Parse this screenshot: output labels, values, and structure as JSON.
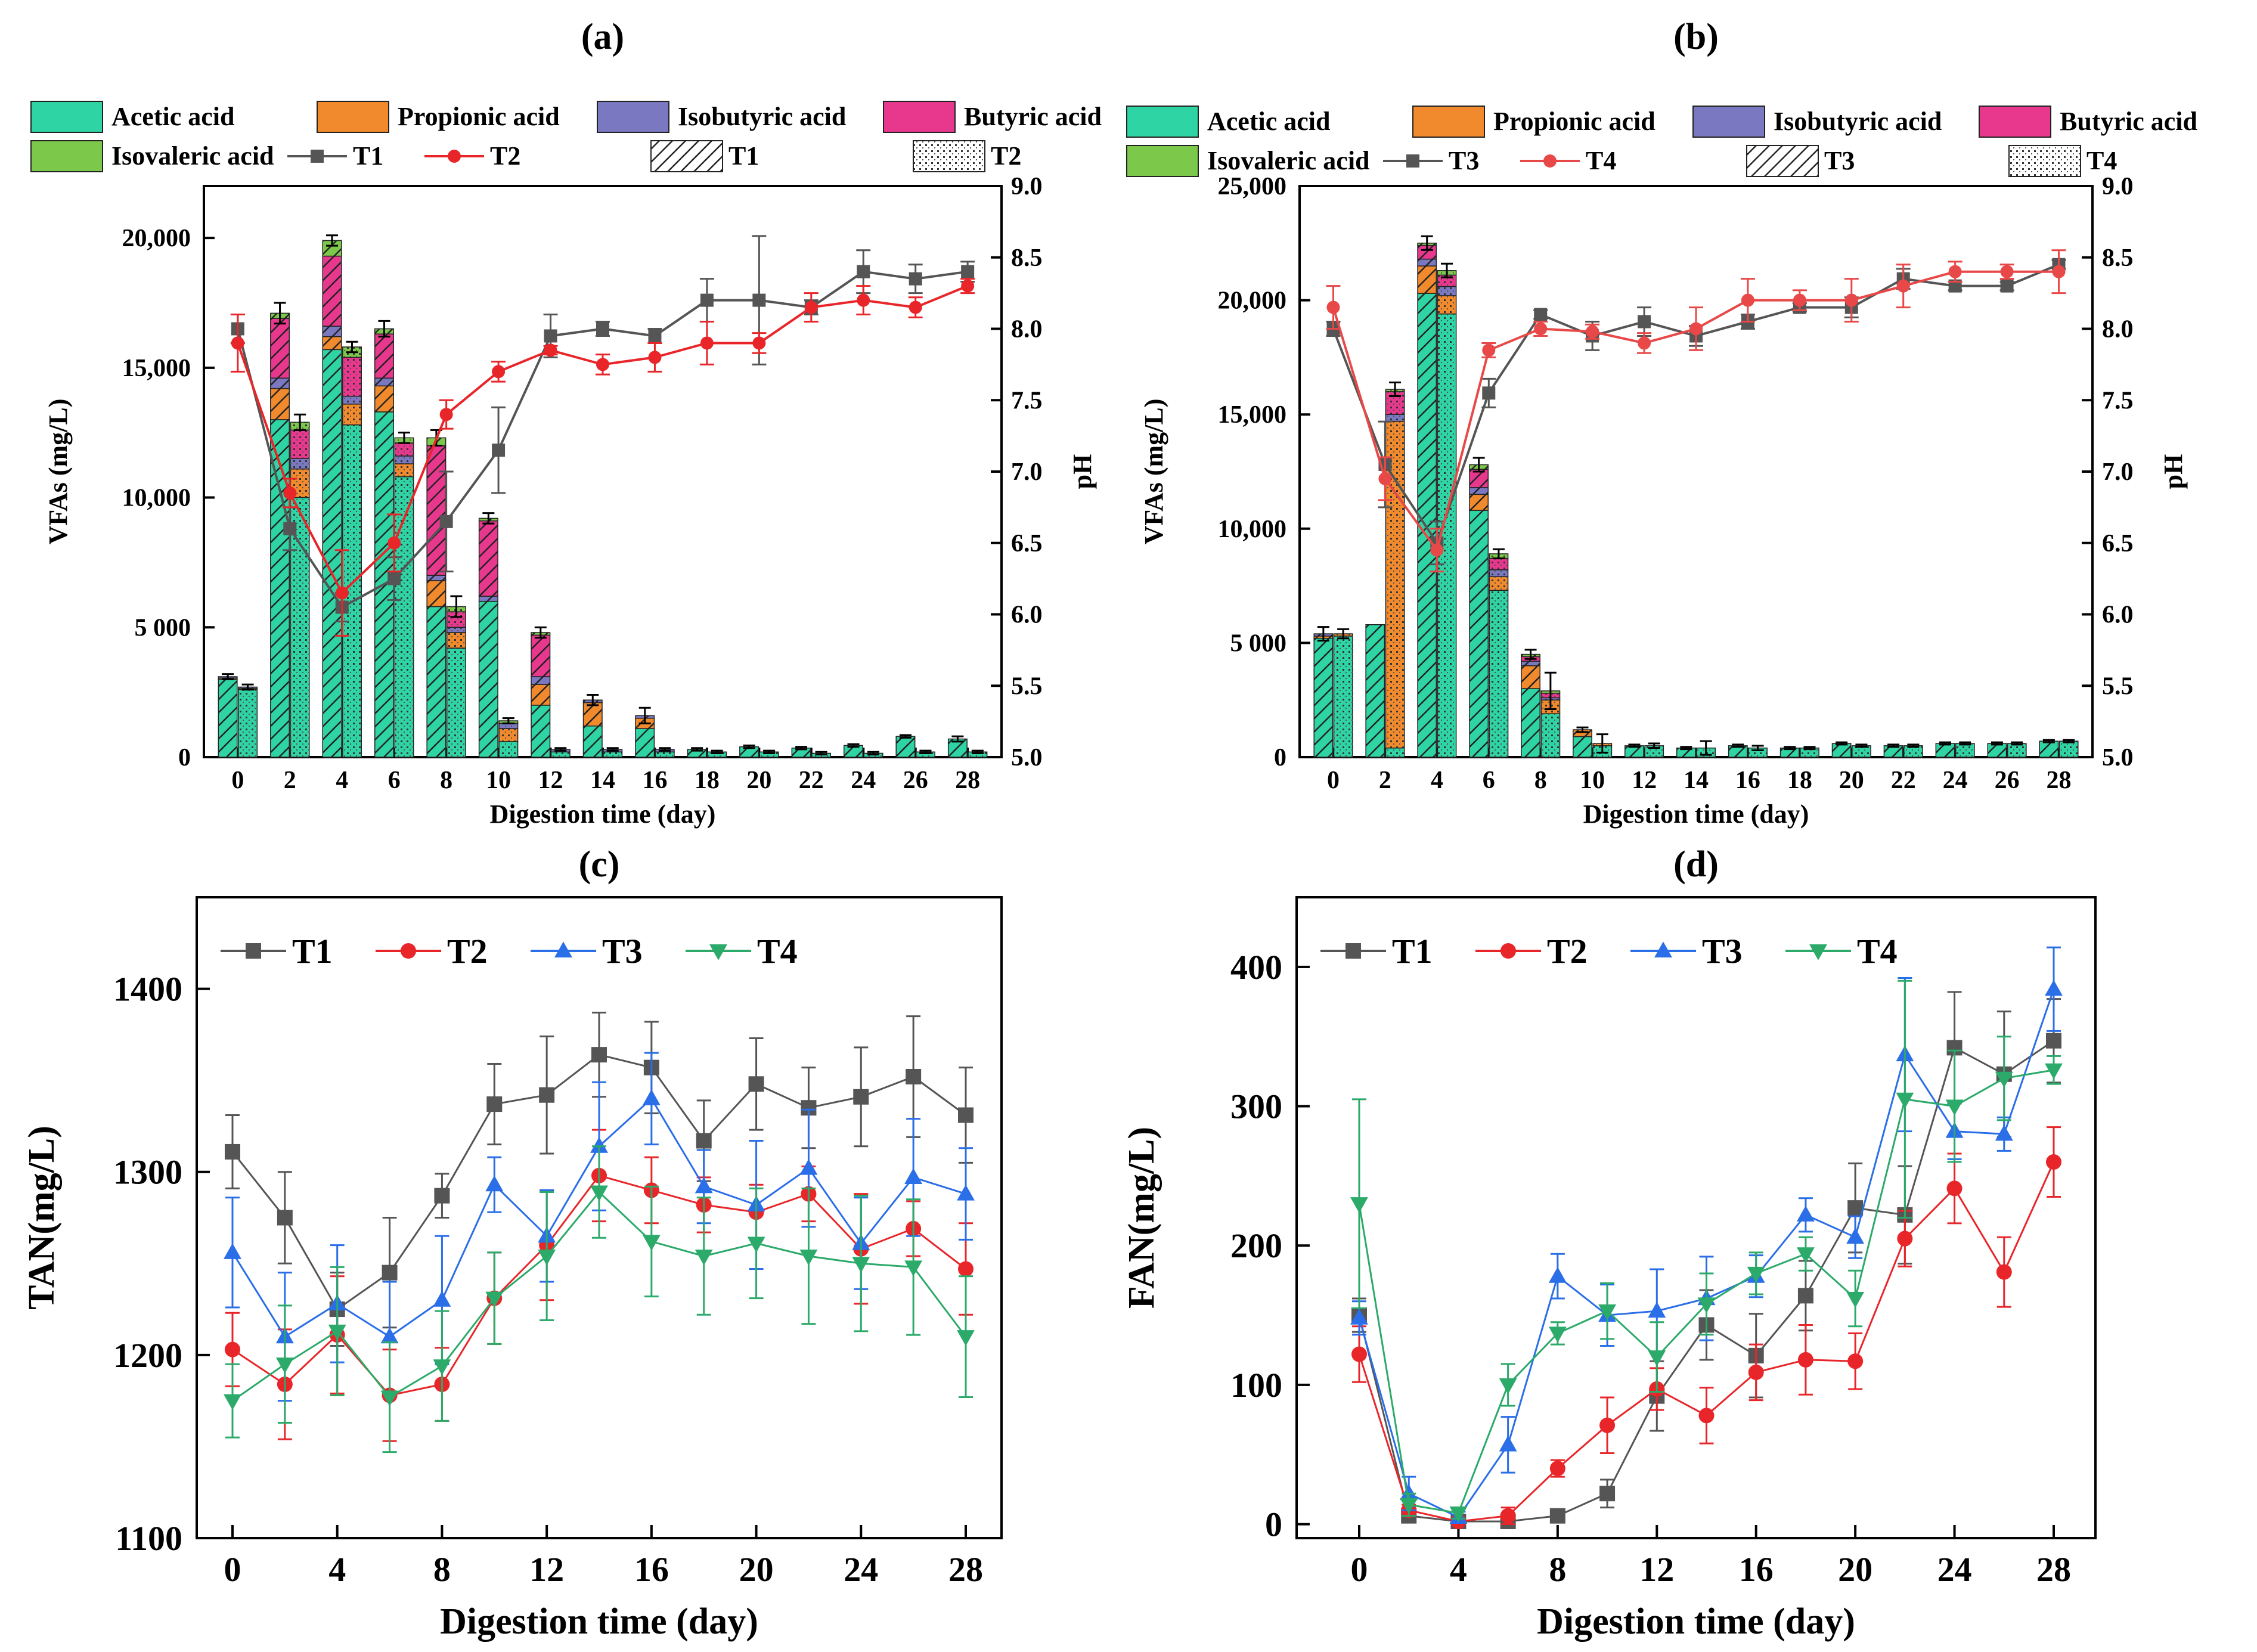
{
  "colors": {
    "acetic": "#2fd4a4",
    "propionic": "#f08a2c",
    "isobutyric": "#7a78c0",
    "butyric": "#e8388e",
    "isovaleric": "#7cc84a",
    "T1": "#555555",
    "T2": "#e8262a",
    "T3": "#2a6ee8",
    "T4": "#2caa6a",
    "T4b": "#e84848"
  },
  "chart_data": [
    {
      "id": "a",
      "type": "bar",
      "panel_label": "(a)",
      "xlabel": "Digestion time (day)",
      "ylabel": "VFAs (mg/L)",
      "ylabel_right": "pH",
      "ylim": [
        0,
        22000
      ],
      "y2lim": [
        5.0,
        9.0
      ],
      "yticks": [
        0,
        5000,
        10000,
        15000,
        20000
      ],
      "ytick_labels": [
        "0",
        "5 000",
        "10,000",
        "15,000",
        "20,000"
      ],
      "y2ticks": [
        "5.0",
        "5.5",
        "6.0",
        "6.5",
        "7.0",
        "7.5",
        "8.0",
        "8.5",
        "9.0"
      ],
      "days": [
        0,
        2,
        4,
        6,
        8,
        10,
        12,
        14,
        16,
        18,
        20,
        22,
        24,
        26,
        28
      ],
      "xtick_labels": [
        "0",
        "2",
        "4",
        "6",
        "8",
        "10",
        "12",
        "14",
        "16",
        "18",
        "20",
        "22",
        "24",
        "26",
        "28"
      ],
      "legend": {
        "acids": [
          "Acetic acid",
          "Propionic acid",
          "Isobutyric acid",
          "Butyric acid",
          "Isovaleric acid"
        ],
        "lines": [
          "T1",
          "T2"
        ],
        "hatch": [
          "T1",
          "T2"
        ]
      },
      "bars": {
        "first": {
          "name": "T1",
          "acetic": [
            3000,
            13000,
            15700,
            13300,
            5800,
            6000,
            2000,
            1200,
            1100,
            300,
            400,
            350,
            450,
            800,
            700
          ],
          "propionic": [
            50,
            1200,
            500,
            1000,
            1000,
            0,
            800,
            900,
            400,
            0,
            0,
            0,
            0,
            0,
            0
          ],
          "isobutyric": [
            50,
            400,
            400,
            300,
            200,
            200,
            300,
            100,
            100,
            0,
            0,
            0,
            0,
            0,
            0
          ],
          "butyric": [
            0,
            2300,
            2700,
            1700,
            5000,
            2900,
            1600,
            0,
            0,
            0,
            0,
            0,
            0,
            0,
            0
          ],
          "isovaleric": [
            0,
            200,
            600,
            200,
            300,
            100,
            100,
            0,
            0,
            0,
            0,
            0,
            0,
            0,
            0
          ],
          "error": [
            100,
            400,
            200,
            300,
            300,
            200,
            200,
            200,
            300,
            50,
            50,
            50,
            50,
            50,
            100
          ]
        },
        "second": {
          "name": "T2",
          "acetic": [
            2600,
            10000,
            12800,
            10800,
            4200,
            600,
            200,
            200,
            200,
            200,
            200,
            150,
            150,
            200,
            200
          ],
          "propionic": [
            50,
            1100,
            800,
            500,
            600,
            500,
            0,
            0,
            0,
            0,
            0,
            0,
            0,
            0,
            0
          ],
          "isobutyric": [
            50,
            400,
            300,
            300,
            200,
            200,
            100,
            100,
            100,
            0,
            0,
            0,
            0,
            0,
            0
          ],
          "butyric": [
            0,
            1100,
            1500,
            500,
            600,
            0,
            0,
            0,
            0,
            0,
            0,
            0,
            0,
            0,
            0
          ],
          "isovaleric": [
            0,
            300,
            400,
            200,
            200,
            100,
            0,
            0,
            0,
            0,
            0,
            0,
            0,
            0,
            0
          ],
          "error": [
            100,
            300,
            200,
            200,
            400,
            100,
            50,
            50,
            50,
            50,
            50,
            50,
            50,
            50,
            50
          ]
        }
      },
      "ph": [
        {
          "name": "T1",
          "values": [
            8.0,
            6.6,
            6.05,
            6.25,
            6.65,
            7.15,
            7.95,
            8.0,
            7.95,
            8.2,
            8.2,
            8.15,
            8.4,
            8.35,
            8.4
          ],
          "err": [
            0.1,
            0.15,
            0.1,
            0.15,
            0.35,
            0.3,
            0.15,
            0.05,
            0.05,
            0.15,
            0.45,
            0.05,
            0.15,
            0.1,
            0.07
          ]
        },
        {
          "name": "T2",
          "values": [
            7.9,
            6.85,
            6.15,
            6.5,
            7.4,
            7.7,
            7.85,
            7.75,
            7.8,
            7.9,
            7.9,
            8.15,
            8.2,
            8.15,
            8.3
          ],
          "err": [
            0.2,
            0.1,
            0.3,
            0.2,
            0.1,
            0.07,
            0.03,
            0.07,
            0.1,
            0.15,
            0.07,
            0.1,
            0.1,
            0.07,
            0.05
          ]
        }
      ]
    },
    {
      "id": "b",
      "type": "bar",
      "panel_label": "(b)",
      "xlabel": "Digestion time (day)",
      "ylabel": "VFAs (mg/L)",
      "ylabel_right": "pH",
      "ylim": [
        0,
        25000
      ],
      "y2lim": [
        5.0,
        9.0
      ],
      "yticks": [
        0,
        5000,
        10000,
        15000,
        20000,
        25000
      ],
      "ytick_labels": [
        "0",
        "5 000",
        "10,000",
        "15,000",
        "20,000",
        "25,000"
      ],
      "y2ticks": [
        "5.0",
        "5.5",
        "6.0",
        "6.5",
        "7.0",
        "7.5",
        "8.0",
        "8.5",
        "9.0"
      ],
      "days": [
        0,
        2,
        4,
        6,
        8,
        10,
        12,
        14,
        16,
        18,
        20,
        22,
        24,
        26,
        28
      ],
      "xtick_labels": [
        "0",
        "2",
        "4",
        "6",
        "8",
        "10",
        "12",
        "14",
        "16",
        "18",
        "20",
        "22",
        "24",
        "26",
        "28"
      ],
      "legend": {
        "acids": [
          "Acetic acid",
          "Propionic acid",
          "Isobutyric acid",
          "Butyric acid",
          "Isovaleric acid"
        ],
        "lines": [
          "T3",
          "T4"
        ],
        "hatch": [
          "T3",
          "T4"
        ]
      },
      "bars": {
        "first": {
          "name": "T3",
          "acetic": [
            5200,
            5800,
            20300,
            10800,
            3000,
            900,
            500,
            400,
            500,
            400,
            600,
            500,
            600,
            600,
            700
          ],
          "propionic": [
            100,
            0,
            1200,
            700,
            1000,
            300,
            0,
            0,
            0,
            0,
            0,
            0,
            0,
            0,
            0
          ],
          "isobutyric": [
            100,
            0,
            300,
            300,
            200,
            0,
            0,
            0,
            0,
            0,
            0,
            0,
            0,
            0,
            0
          ],
          "butyric": [
            0,
            0,
            600,
            800,
            200,
            0,
            0,
            0,
            0,
            0,
            0,
            0,
            0,
            0,
            0
          ],
          "isovaleric": [
            0,
            0,
            100,
            200,
            100,
            0,
            0,
            0,
            0,
            0,
            0,
            0,
            0,
            0,
            0
          ],
          "error": [
            300,
            0,
            300,
            300,
            200,
            100,
            50,
            50,
            50,
            50,
            50,
            50,
            50,
            50,
            50
          ]
        },
        "second": {
          "name": "T4",
          "acetic": [
            5300,
            400,
            19400,
            7300,
            1900,
            500,
            500,
            400,
            400,
            400,
            500,
            500,
            600,
            600,
            700
          ],
          "propionic": [
            100,
            14300,
            800,
            600,
            600,
            100,
            0,
            0,
            0,
            0,
            0,
            0,
            0,
            0,
            0
          ],
          "isobutyric": [
            0,
            300,
            400,
            300,
            100,
            0,
            0,
            0,
            0,
            0,
            0,
            0,
            0,
            0,
            0
          ],
          "butyric": [
            0,
            1000,
            500,
            500,
            200,
            0,
            0,
            0,
            0,
            0,
            0,
            0,
            0,
            0,
            0
          ],
          "isovaleric": [
            0,
            100,
            200,
            200,
            100,
            0,
            0,
            0,
            0,
            0,
            0,
            0,
            0,
            0,
            0
          ],
          "error": [
            200,
            300,
            300,
            200,
            800,
            400,
            100,
            300,
            100,
            50,
            50,
            50,
            50,
            50,
            50
          ]
        }
      },
      "ph": [
        {
          "name": "T3",
          "values": [
            8.0,
            7.05,
            6.5,
            7.55,
            8.1,
            7.95,
            8.05,
            7.95,
            8.05,
            8.15,
            8.15,
            8.35,
            8.3,
            8.3,
            8.45
          ],
          "err": [
            0.05,
            0.3,
            0.15,
            0.1,
            0.03,
            0.1,
            0.1,
            0.07,
            0.05,
            0.03,
            0.07,
            0.07,
            0.03,
            0.03,
            0.03
          ]
        },
        {
          "name": "T4",
          "values": [
            8.15,
            6.95,
            6.45,
            7.85,
            8.0,
            7.98,
            7.9,
            8.0,
            8.2,
            8.2,
            8.2,
            8.3,
            8.4,
            8.4,
            8.4
          ],
          "err": [
            0.15,
            0.15,
            0.15,
            0.05,
            0.05,
            0.05,
            0.07,
            0.15,
            0.15,
            0.07,
            0.15,
            0.15,
            0.07,
            0.05,
            0.15
          ]
        }
      ]
    },
    {
      "id": "c",
      "type": "line",
      "panel_label": "(c)",
      "xlabel": "Digestion time (day)",
      "ylabel": "TAN(mg/L)",
      "ylim": [
        1100,
        1450
      ],
      "yticks": [
        1100,
        1200,
        1300,
        1400
      ],
      "ytick_labels": [
        "1100",
        "1200",
        "1300",
        "1400"
      ],
      "x": [
        0,
        2,
        4,
        6,
        8,
        10,
        12,
        14,
        16,
        18,
        20,
        22,
        24,
        26,
        28
      ],
      "xticks": [
        0,
        4,
        8,
        12,
        16,
        20,
        24,
        28
      ],
      "xtick_labels": [
        "0",
        "4",
        "8",
        "12",
        "16",
        "20",
        "24",
        "28"
      ],
      "series": [
        {
          "name": "T1",
          "marker": "square",
          "values": [
            1311,
            1275,
            1225,
            1245,
            1287,
            1337,
            1342,
            1364,
            1357,
            1317,
            1348,
            1335,
            1341,
            1352,
            1331
          ],
          "err": [
            20,
            25,
            20,
            30,
            12,
            22,
            32,
            23,
            25,
            22,
            25,
            22,
            27,
            33,
            26
          ]
        },
        {
          "name": "T2",
          "marker": "circle",
          "values": [
            1203,
            1184,
            1211,
            1178,
            1184,
            1231,
            1260,
            1298,
            1290,
            1282,
            1278,
            1288,
            1258,
            1269,
            1247
          ],
          "err": [
            20,
            30,
            32,
            25,
            20,
            25,
            30,
            25,
            18,
            15,
            15,
            15,
            30,
            15,
            25
          ]
        },
        {
          "name": "T3",
          "marker": "triangle-up",
          "values": [
            1256,
            1210,
            1228,
            1210,
            1230,
            1293,
            1265,
            1314,
            1340,
            1292,
            1282,
            1302,
            1261,
            1297,
            1288
          ],
          "err": [
            30,
            35,
            32,
            30,
            35,
            15,
            25,
            35,
            25,
            20,
            35,
            32,
            25,
            32,
            25
          ]
        },
        {
          "name": "T4",
          "marker": "triangle-down",
          "values": [
            1175,
            1195,
            1213,
            1177,
            1194,
            1231,
            1254,
            1289,
            1262,
            1254,
            1261,
            1254,
            1250,
            1248,
            1210
          ],
          "err": [
            20,
            32,
            35,
            30,
            30,
            25,
            35,
            25,
            30,
            32,
            30,
            37,
            37,
            37,
            33
          ]
        }
      ]
    },
    {
      "id": "d",
      "type": "line",
      "panel_label": "(d)",
      "xlabel": "Digestion time (day)",
      "ylabel": "FAN(mg/L)",
      "ylim": [
        -10,
        450
      ],
      "yticks": [
        0,
        100,
        200,
        300,
        400
      ],
      "ytick_labels": [
        "0",
        "100",
        "200",
        "300",
        "400"
      ],
      "x": [
        0,
        2,
        4,
        6,
        8,
        10,
        12,
        14,
        16,
        18,
        20,
        22,
        24,
        26,
        28
      ],
      "xticks": [
        0,
        4,
        8,
        12,
        16,
        20,
        24,
        28
      ],
      "xtick_labels": [
        "0",
        "4",
        "8",
        "12",
        "16",
        "20",
        "24",
        "28"
      ],
      "series": [
        {
          "name": "T1",
          "marker": "square",
          "values": [
            150,
            6,
            2,
            2,
            6,
            22,
            92,
            143,
            121,
            164,
            227,
            222,
            342,
            323,
            347
          ],
          "err": [
            12,
            4,
            2,
            2,
            2,
            10,
            25,
            25,
            30,
            25,
            32,
            35,
            40,
            45,
            30
          ]
        },
        {
          "name": "T2",
          "marker": "circle",
          "values": [
            122,
            10,
            2,
            6,
            40,
            71,
            97,
            78,
            109,
            118,
            117,
            205,
            241,
            181,
            260
          ],
          "err": [
            20,
            4,
            2,
            6,
            6,
            20,
            15,
            20,
            20,
            25,
            20,
            20,
            25,
            25,
            25
          ]
        },
        {
          "name": "T3",
          "marker": "triangle-up",
          "values": [
            148,
            22,
            5,
            57,
            178,
            150,
            153,
            162,
            178,
            222,
            206,
            337,
            282,
            280,
            384
          ],
          "err": [
            12,
            12,
            4,
            20,
            16,
            22,
            30,
            30,
            15,
            12,
            15,
            55,
            20,
            12,
            30
          ]
        },
        {
          "name": "T4",
          "marker": "triangle-down",
          "values": [
            230,
            14,
            8,
            100,
            137,
            153,
            120,
            158,
            180,
            194,
            162,
            305,
            300,
            320,
            326
          ],
          "err": [
            75,
            8,
            4,
            15,
            8,
            20,
            25,
            22,
            15,
            12,
            20,
            85,
            40,
            30,
            10
          ]
        }
      ]
    }
  ]
}
